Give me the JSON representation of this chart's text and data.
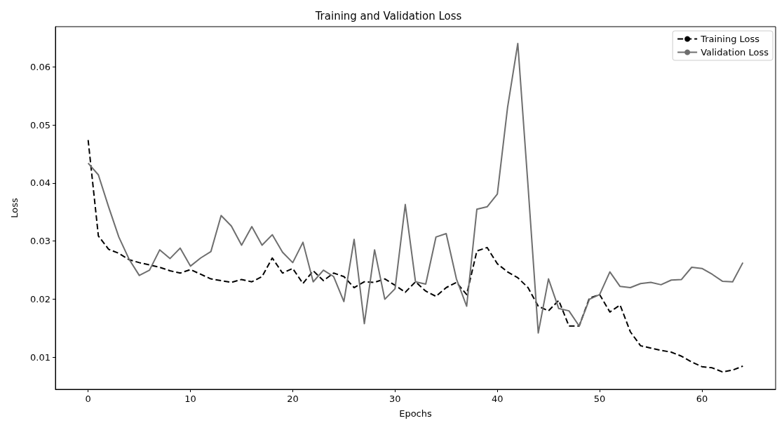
{
  "chart_data": {
    "type": "line",
    "title": "Training and Validation Loss",
    "xlabel": "Epochs",
    "ylabel": "Loss",
    "x": [
      0,
      1,
      2,
      3,
      4,
      5,
      6,
      7,
      8,
      9,
      10,
      11,
      12,
      13,
      14,
      15,
      16,
      17,
      18,
      19,
      20,
      21,
      22,
      23,
      24,
      25,
      26,
      27,
      28,
      29,
      30,
      31,
      32,
      33,
      34,
      35,
      36,
      37,
      38,
      39,
      40,
      41,
      42,
      43,
      44,
      45,
      46,
      47,
      48,
      49,
      50,
      51,
      52,
      53,
      54,
      55,
      56,
      57,
      58,
      59,
      60,
      61,
      62,
      63,
      64
    ],
    "series": [
      {
        "name": "Training Loss",
        "color": "#000000",
        "line_style": "dashed",
        "values": [
          0.0474,
          0.0309,
          0.0286,
          0.0279,
          0.0268,
          0.0263,
          0.0259,
          0.0255,
          0.0249,
          0.0245,
          0.0251,
          0.0243,
          0.0235,
          0.0232,
          0.0229,
          0.0234,
          0.023,
          0.0239,
          0.0271,
          0.0245,
          0.0253,
          0.0227,
          0.0249,
          0.0232,
          0.0245,
          0.0239,
          0.022,
          0.023,
          0.0229,
          0.0235,
          0.0224,
          0.0212,
          0.023,
          0.0214,
          0.0205,
          0.022,
          0.0229,
          0.0208,
          0.0283,
          0.0289,
          0.0261,
          0.0247,
          0.0237,
          0.022,
          0.0188,
          0.018,
          0.0198,
          0.0154,
          0.0154,
          0.0202,
          0.0208,
          0.0178,
          0.019,
          0.0144,
          0.012,
          0.0116,
          0.0112,
          0.0109,
          0.0102,
          0.0092,
          0.0084,
          0.0082,
          0.0075,
          0.0078,
          0.0085
        ]
      },
      {
        "name": "Validation Loss",
        "color": "#6e6e6e",
        "line_style": "solid",
        "values": [
          0.0434,
          0.0414,
          0.0359,
          0.0307,
          0.0269,
          0.0241,
          0.025,
          0.0285,
          0.027,
          0.0288,
          0.0257,
          0.0271,
          0.0282,
          0.0344,
          0.0326,
          0.0293,
          0.0325,
          0.0293,
          0.0311,
          0.0281,
          0.0263,
          0.0298,
          0.023,
          0.025,
          0.0239,
          0.0196,
          0.0303,
          0.0158,
          0.0285,
          0.02,
          0.0218,
          0.0363,
          0.023,
          0.0226,
          0.0307,
          0.0313,
          0.0235,
          0.0188,
          0.0355,
          0.0359,
          0.0381,
          0.053,
          0.064,
          0.0395,
          0.0142,
          0.0235,
          0.0184,
          0.018,
          0.0154,
          0.02,
          0.0208,
          0.0247,
          0.0222,
          0.022,
          0.0227,
          0.0229,
          0.0225,
          0.0233,
          0.0234,
          0.0255,
          0.0253,
          0.0243,
          0.0231,
          0.023,
          0.0263
        ]
      }
    ],
    "xlim": [
      -3.2,
      67.2
    ],
    "ylim": [
      0.0045,
      0.0669
    ],
    "xticks": [
      0,
      10,
      20,
      30,
      40,
      50,
      60
    ],
    "yticks": [
      0.01,
      0.02,
      0.03,
      0.04,
      0.05,
      0.06
    ],
    "grid": false,
    "legend": "top right",
    "marker": "none"
  }
}
